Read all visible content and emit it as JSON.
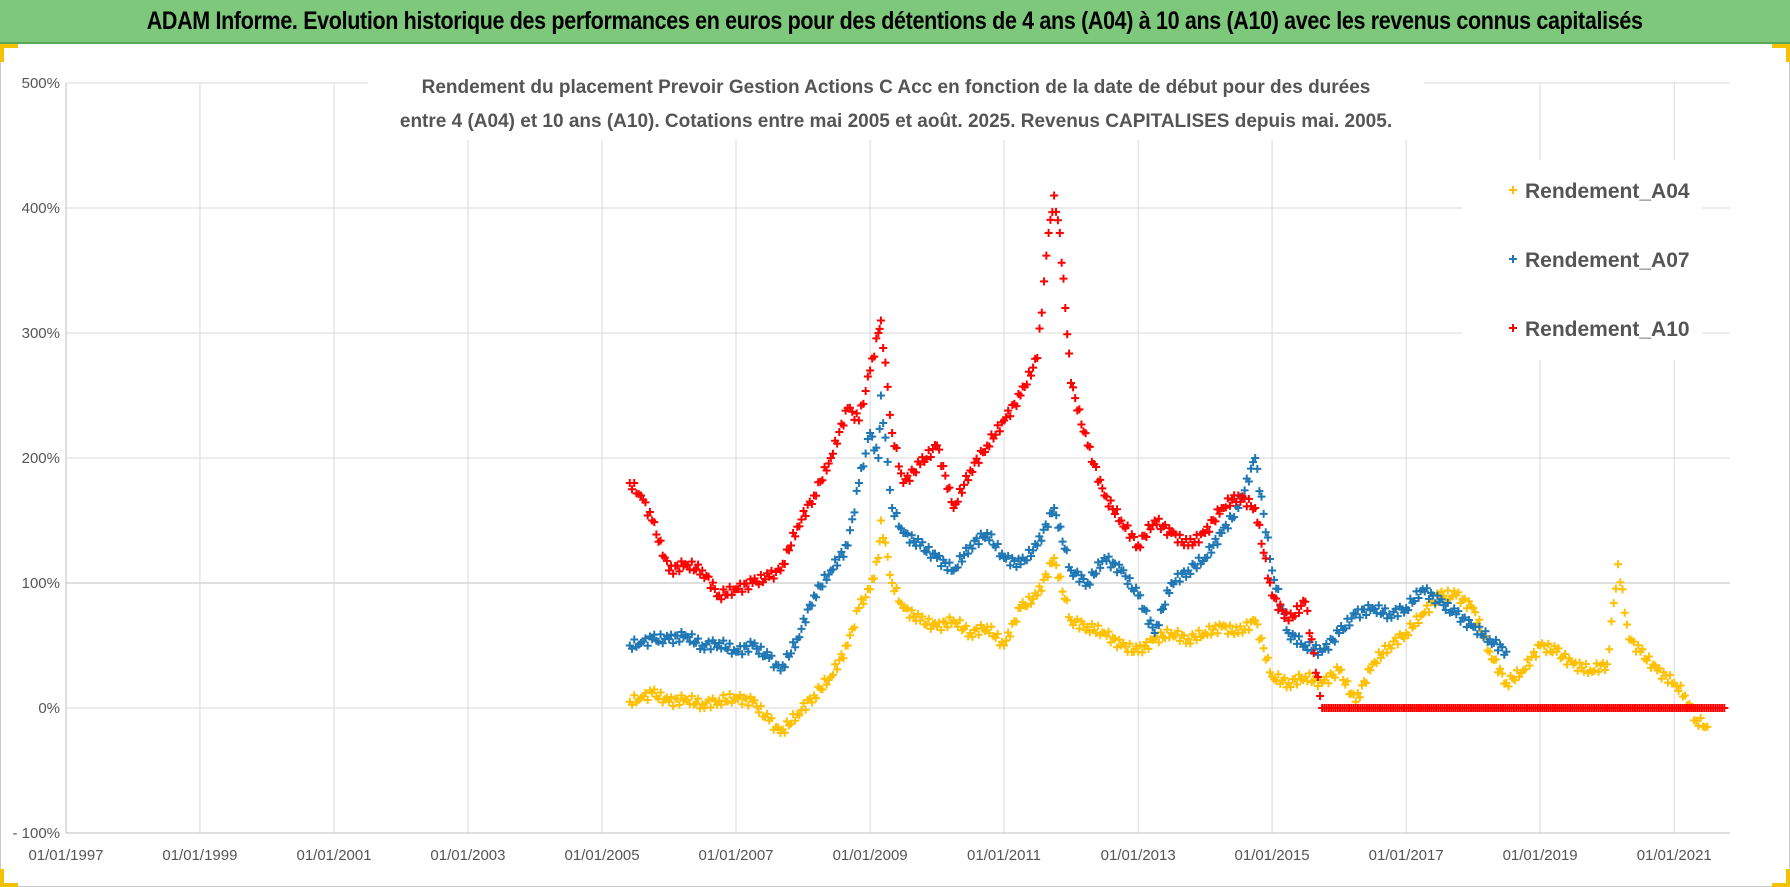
{
  "banner": {
    "title": "ADAM Informe. Evolution historique des performances en euros pour des détentions de 4 ans (A04) à 10 ans (A10) avec les revenus connus capitalisés"
  },
  "colors": {
    "banner_bg": "#7dc87a",
    "A04": "#ffc000",
    "A07": "#1f77b4",
    "A10": "#ff0000",
    "grid": "#d9d9d9"
  },
  "chart_data": {
    "type": "scatter",
    "title_lines": [
      "Rendement du placement Prevoir Gestion Actions C Acc en fonction de la date de début pour des durées",
      "entre 4 (A04) et 10 ans (A10). Cotations entre mai 2005 et août. 2025. Revenus CAPITALISES depuis mai. 2005."
    ],
    "xlabel": "",
    "ylabel": "",
    "x_range": [
      "1997-01-01",
      "2021-11-01"
    ],
    "y_range": [
      -100,
      500
    ],
    "y_ticks": [
      -100,
      0,
      100,
      200,
      300,
      400,
      500
    ],
    "y_tick_labels": [
      "- 100%",
      "0%",
      "100%",
      "200%",
      "300%",
      "400%",
      "500%"
    ],
    "x_ticks": [
      "1997-01-01",
      "1999-01-01",
      "2001-01-01",
      "2003-01-01",
      "2005-01-01",
      "2007-01-01",
      "2009-01-01",
      "2011-01-01",
      "2013-01-01",
      "2015-01-01",
      "2017-01-01",
      "2019-01-01",
      "2021-01-01"
    ],
    "x_tick_labels": [
      "01/01/1997",
      "01/01/1999",
      "01/01/2001",
      "01/01/2003",
      "01/01/2005",
      "01/01/2007",
      "01/01/2009",
      "01/01/2011",
      "01/01/2013",
      "01/01/2015",
      "01/01/2017",
      "01/01/2019",
      "01/01/2021"
    ],
    "grid": true,
    "legend_position": "top-right",
    "marker": "+",
    "series": [
      {
        "name": "Rendement_A04",
        "color": "#ffc000",
        "points": [
          [
            "2005-06-01",
            5
          ],
          [
            "2005-08-01",
            8
          ],
          [
            "2005-10-01",
            12
          ],
          [
            "2006-01-01",
            5
          ],
          [
            "2006-04-01",
            7
          ],
          [
            "2006-07-01",
            3
          ],
          [
            "2006-10-01",
            6
          ],
          [
            "2007-01-01",
            8
          ],
          [
            "2007-04-01",
            5
          ],
          [
            "2007-07-01",
            -10
          ],
          [
            "2007-09-01",
            -20
          ],
          [
            "2007-12-01",
            -5
          ],
          [
            "2008-03-01",
            10
          ],
          [
            "2008-06-01",
            25
          ],
          [
            "2008-09-01",
            50
          ],
          [
            "2008-11-01",
            80
          ],
          [
            "2009-01-01",
            95
          ],
          [
            "2009-02-15",
            120
          ],
          [
            "2009-03-01",
            150
          ],
          [
            "2009-05-01",
            100
          ],
          [
            "2009-07-01",
            80
          ],
          [
            "2009-10-01",
            70
          ],
          [
            "2010-01-01",
            65
          ],
          [
            "2010-04-01",
            70
          ],
          [
            "2010-07-01",
            60
          ],
          [
            "2010-10-01",
            65
          ],
          [
            "2011-01-01",
            50
          ],
          [
            "2011-04-01",
            80
          ],
          [
            "2011-07-01",
            90
          ],
          [
            "2011-10-01",
            120
          ],
          [
            "2012-01-01",
            70
          ],
          [
            "2012-04-01",
            65
          ],
          [
            "2012-07-01",
            60
          ],
          [
            "2012-10-01",
            50
          ],
          [
            "2013-01-01",
            45
          ],
          [
            "2013-04-01",
            55
          ],
          [
            "2013-07-01",
            60
          ],
          [
            "2013-10-01",
            55
          ],
          [
            "2014-01-01",
            60
          ],
          [
            "2014-04-01",
            65
          ],
          [
            "2014-07-01",
            60
          ],
          [
            "2014-10-01",
            70
          ],
          [
            "2015-01-01",
            25
          ],
          [
            "2015-04-01",
            20
          ],
          [
            "2015-07-01",
            25
          ],
          [
            "2015-10-01",
            20
          ],
          [
            "2016-01-01",
            30
          ],
          [
            "2016-04-01",
            5
          ],
          [
            "2016-07-01",
            35
          ],
          [
            "2016-10-01",
            50
          ],
          [
            "2017-01-01",
            60
          ],
          [
            "2017-04-01",
            75
          ],
          [
            "2017-07-01",
            90
          ],
          [
            "2017-10-01",
            90
          ],
          [
            "2018-01-01",
            80
          ],
          [
            "2018-04-01",
            45
          ],
          [
            "2018-07-01",
            20
          ],
          [
            "2018-10-01",
            30
          ],
          [
            "2019-01-01",
            50
          ],
          [
            "2019-04-01",
            45
          ],
          [
            "2019-07-01",
            35
          ],
          [
            "2019-10-01",
            30
          ],
          [
            "2020-01-01",
            35
          ],
          [
            "2020-03-01",
            115
          ],
          [
            "2020-05-01",
            55
          ],
          [
            "2020-07-01",
            45
          ],
          [
            "2020-10-01",
            30
          ],
          [
            "2021-01-01",
            20
          ],
          [
            "2021-03-01",
            10
          ],
          [
            "2021-05-01",
            -10
          ],
          [
            "2021-07-01",
            -15
          ]
        ]
      },
      {
        "name": "Rendement_A07",
        "color": "#1f77b4",
        "points": [
          [
            "2005-06-01",
            50
          ],
          [
            "2005-08-01",
            52
          ],
          [
            "2005-10-01",
            55
          ],
          [
            "2006-01-01",
            55
          ],
          [
            "2006-04-01",
            58
          ],
          [
            "2006-07-01",
            50
          ],
          [
            "2006-10-01",
            52
          ],
          [
            "2007-01-01",
            45
          ],
          [
            "2007-04-01",
            50
          ],
          [
            "2007-07-01",
            40
          ],
          [
            "2007-09-01",
            30
          ],
          [
            "2007-12-01",
            55
          ],
          [
            "2008-03-01",
            90
          ],
          [
            "2008-06-01",
            110
          ],
          [
            "2008-09-01",
            130
          ],
          [
            "2008-11-01",
            180
          ],
          [
            "2009-01-01",
            220
          ],
          [
            "2009-02-15",
            200
          ],
          [
            "2009-03-01",
            250
          ],
          [
            "2009-05-01",
            160
          ],
          [
            "2009-07-01",
            140
          ],
          [
            "2009-10-01",
            130
          ],
          [
            "2010-01-01",
            120
          ],
          [
            "2010-04-01",
            110
          ],
          [
            "2010-07-01",
            130
          ],
          [
            "2010-10-01",
            140
          ],
          [
            "2011-01-01",
            120
          ],
          [
            "2011-04-01",
            115
          ],
          [
            "2011-07-01",
            130
          ],
          [
            "2011-10-01",
            160
          ],
          [
            "2012-01-01",
            110
          ],
          [
            "2012-04-01",
            100
          ],
          [
            "2012-07-01",
            120
          ],
          [
            "2012-10-01",
            110
          ],
          [
            "2013-01-01",
            90
          ],
          [
            "2013-04-01",
            60
          ],
          [
            "2013-07-01",
            100
          ],
          [
            "2013-10-01",
            110
          ],
          [
            "2014-01-01",
            120
          ],
          [
            "2014-04-01",
            140
          ],
          [
            "2014-07-01",
            160
          ],
          [
            "2014-10-01",
            200
          ],
          [
            "2015-01-01",
            110
          ],
          [
            "2015-04-01",
            60
          ],
          [
            "2015-07-01",
            50
          ],
          [
            "2015-10-01",
            45
          ],
          [
            "2016-01-01",
            60
          ],
          [
            "2016-04-01",
            75
          ],
          [
            "2016-07-01",
            80
          ],
          [
            "2016-10-01",
            75
          ],
          [
            "2017-01-01",
            80
          ],
          [
            "2017-04-01",
            95
          ],
          [
            "2017-07-01",
            85
          ],
          [
            "2017-10-01",
            75
          ],
          [
            "2018-01-01",
            65
          ],
          [
            "2018-04-01",
            55
          ],
          [
            "2018-07-01",
            45
          ]
        ]
      },
      {
        "name": "Rendement_A10",
        "color": "#ff0000",
        "points": [
          [
            "2005-06-01",
            180
          ],
          [
            "2005-08-01",
            170
          ],
          [
            "2005-10-01",
            150
          ],
          [
            "2006-01-01",
            110
          ],
          [
            "2006-04-01",
            115
          ],
          [
            "2006-07-01",
            110
          ],
          [
            "2006-10-01",
            90
          ],
          [
            "2007-01-01",
            95
          ],
          [
            "2007-04-01",
            100
          ],
          [
            "2007-07-01",
            105
          ],
          [
            "2007-09-01",
            110
          ],
          [
            "2007-12-01",
            145
          ],
          [
            "2008-03-01",
            170
          ],
          [
            "2008-06-01",
            200
          ],
          [
            "2008-09-01",
            240
          ],
          [
            "2008-11-01",
            230
          ],
          [
            "2009-01-01",
            270
          ],
          [
            "2009-02-15",
            300
          ],
          [
            "2009-03-01",
            310
          ],
          [
            "2009-05-01",
            220
          ],
          [
            "2009-07-01",
            180
          ],
          [
            "2009-10-01",
            195
          ],
          [
            "2010-01-01",
            210
          ],
          [
            "2010-04-01",
            160
          ],
          [
            "2010-07-01",
            190
          ],
          [
            "2010-10-01",
            210
          ],
          [
            "2011-01-01",
            230
          ],
          [
            "2011-04-01",
            250
          ],
          [
            "2011-07-01",
            280
          ],
          [
            "2011-09-01",
            380
          ],
          [
            "2011-10-01",
            410
          ],
          [
            "2011-11-01",
            380
          ],
          [
            "2011-12-01",
            320
          ],
          [
            "2012-01-01",
            260
          ],
          [
            "2012-04-01",
            210
          ],
          [
            "2012-07-01",
            170
          ],
          [
            "2012-10-01",
            150
          ],
          [
            "2013-01-01",
            130
          ],
          [
            "2013-04-01",
            150
          ],
          [
            "2013-07-01",
            140
          ],
          [
            "2013-10-01",
            130
          ],
          [
            "2014-01-01",
            140
          ],
          [
            "2014-04-01",
            160
          ],
          [
            "2014-07-01",
            170
          ],
          [
            "2014-10-01",
            160
          ],
          [
            "2015-01-01",
            90
          ],
          [
            "2015-04-01",
            70
          ],
          [
            "2015-07-01",
            85
          ],
          [
            "2015-10-01",
            0
          ],
          [
            "2016-06-01",
            0
          ],
          [
            "2017-01-01",
            0
          ],
          [
            "2017-06-01",
            0
          ],
          [
            "2018-01-01",
            0
          ],
          [
            "2018-06-01",
            0
          ],
          [
            "2019-01-01",
            0
          ],
          [
            "2019-06-01",
            0
          ],
          [
            "2020-01-01",
            0
          ],
          [
            "2020-06-01",
            0
          ],
          [
            "2021-01-01",
            0
          ],
          [
            "2021-06-01",
            0
          ],
          [
            "2021-10-01",
            0
          ]
        ]
      }
    ]
  }
}
